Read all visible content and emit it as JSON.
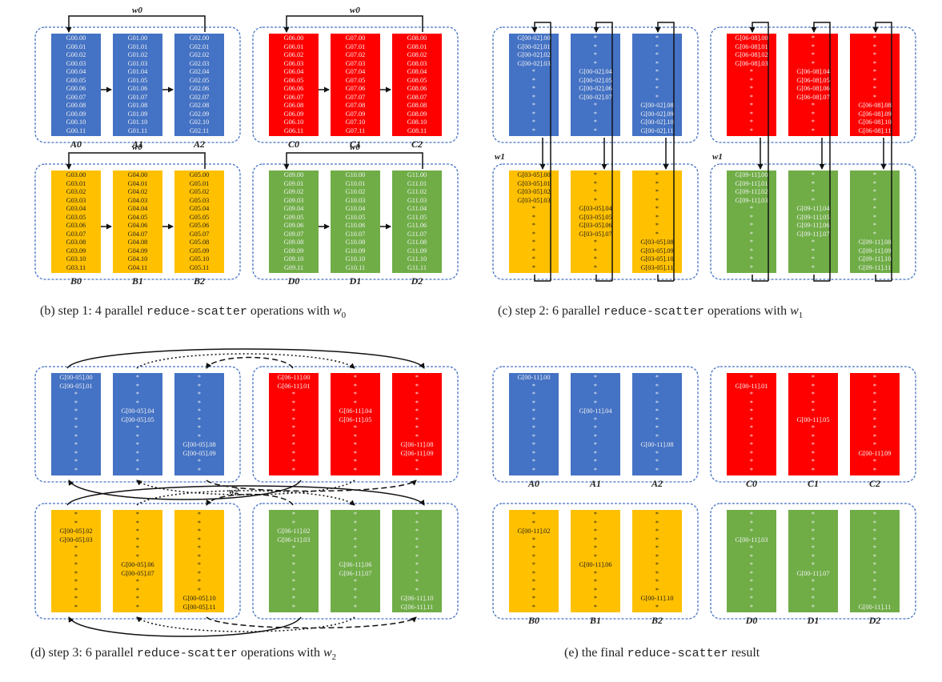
{
  "colors": {
    "A": "#4472c4",
    "B": "#ffc000",
    "C": "#ff0000",
    "D": "#70ad47"
  },
  "captions": {
    "b": {
      "prefix": "(b) step 1: 4 parallel ",
      "mono": "reduce-scatter",
      "middle": " operations with ",
      "var": "w",
      "sub": "0"
    },
    "c": {
      "prefix": "(c) step 2: 6 parallel ",
      "mono": "reduce-scatter",
      "middle": " operations with ",
      "var": "w",
      "sub": "1"
    },
    "d": {
      "prefix": "(d) step 3: 6 parallel ",
      "mono": "reduce-scatter",
      "middle": " operations with ",
      "var": "w",
      "sub": "2"
    },
    "e": {
      "prefix": "(e) the final ",
      "mono": "reduce-scatter",
      "middle": " result",
      "var": "",
      "sub": ""
    }
  },
  "weights": {
    "w0": "w0",
    "w1": "w1",
    "w2": "w2"
  },
  "node_labels": {
    "A": [
      "A0",
      "A1",
      "A2"
    ],
    "B": [
      "B0",
      "B1",
      "B2"
    ],
    "C": [
      "C0",
      "C1",
      "C2"
    ],
    "D": [
      "D0",
      "D1",
      "D2"
    ]
  },
  "step1": {
    "A": [
      [
        "G00.00",
        "G00.01",
        "G00.02",
        "G00.03",
        "G00.04",
        "G00.05",
        "G00.06",
        "G00.07",
        "G00.08",
        "G00.09",
        "G00.10",
        "G00.11"
      ],
      [
        "G01.00",
        "G01.01",
        "G01.02",
        "G01.03",
        "G01.04",
        "G01.05",
        "G01.06",
        "G01.07",
        "G01.08",
        "G01.09",
        "G01.10",
        "G01.11"
      ],
      [
        "G02.00",
        "G02.01",
        "G02.02",
        "G02.03",
        "G02.04",
        "G02.05",
        "G02.06",
        "G02.07",
        "G02.08",
        "G02.09",
        "G02.10",
        "G02.11"
      ]
    ],
    "B": [
      [
        "G03.00",
        "G03.01",
        "G03.02",
        "G03.03",
        "G03.04",
        "G03.05",
        "G03.06",
        "G03.07",
        "G03.08",
        "G03.09",
        "G03.10",
        "G03.11"
      ],
      [
        "G04.00",
        "G04.01",
        "G04.02",
        "G04.03",
        "G04.04",
        "G04.05",
        "G04.06",
        "G04.07",
        "G04.08",
        "G04.09",
        "G04.10",
        "G04.11"
      ],
      [
        "G05.00",
        "G05.01",
        "G05.02",
        "G05.03",
        "G05.04",
        "G05.05",
        "G05.06",
        "G05.07",
        "G05.08",
        "G05.09",
        "G05.10",
        "G05.11"
      ]
    ],
    "C": [
      [
        "G06.00",
        "G06.01",
        "G06.02",
        "G06.03",
        "G06.04",
        "G06.05",
        "G06.06",
        "G06.07",
        "G06.08",
        "G06.09",
        "G06.10",
        "G06.11"
      ],
      [
        "G07.00",
        "G07.01",
        "G07.02",
        "G07.03",
        "G07.04",
        "G07.05",
        "G07.06",
        "G07.07",
        "G07.08",
        "G07.09",
        "G07.10",
        "G07.11"
      ],
      [
        "G08.00",
        "G08.01",
        "G08.02",
        "G08.03",
        "G08.04",
        "G08.05",
        "G08.06",
        "G08.07",
        "G08.08",
        "G08.09",
        "G08.10",
        "G08.11"
      ]
    ],
    "D": [
      [
        "G09.00",
        "G09.01",
        "G09.02",
        "G09.03",
        "G09.04",
        "G09.05",
        "G09.06",
        "G09.07",
        "G09.08",
        "G09.09",
        "G09.10",
        "G09.11"
      ],
      [
        "G10.00",
        "G10.01",
        "G10.02",
        "G10.03",
        "G10.04",
        "G10.05",
        "G10.06",
        "G10.07",
        "G10.08",
        "G10.09",
        "G10.10",
        "G10.11"
      ],
      [
        "G11.00",
        "G11.01",
        "G11.02",
        "G11.03",
        "G11.04",
        "G11.05",
        "G11.06",
        "G11.07",
        "G11.08",
        "G11.09",
        "G11.10",
        "G11.11"
      ]
    ]
  },
  "step2": {
    "A": [
      [
        "G[00-02].00",
        "G[00-02].01",
        "G[00-02].02",
        "G[00-02].03",
        "*",
        "*",
        "*",
        "*",
        "*",
        "*",
        "*",
        "*"
      ],
      [
        "*",
        "*",
        "*",
        "*",
        "G[00-02].04",
        "G[00-02].05",
        "G[00-02].06",
        "G[00-02].07",
        "*",
        "*",
        "*",
        "*"
      ],
      [
        "*",
        "*",
        "*",
        "*",
        "*",
        "*",
        "*",
        "*",
        "G[00-02].08",
        "G[00-02].09",
        "G[00-02].10",
        "G[00-02].11"
      ]
    ],
    "B": [
      [
        "G[03-05].00",
        "G[03-05].01",
        "G[03-05].02",
        "G[03-05].03",
        "*",
        "*",
        "*",
        "*",
        "*",
        "*",
        "*",
        "*"
      ],
      [
        "*",
        "*",
        "*",
        "*",
        "G[03-05].04",
        "G[03-05].05",
        "G[03-05].06",
        "G[03-05].07",
        "*",
        "*",
        "*",
        "*"
      ],
      [
        "*",
        "*",
        "*",
        "*",
        "*",
        "*",
        "*",
        "*",
        "G[03-05].08",
        "G[03-05].09",
        "G[03-05].10",
        "G[03-05].11"
      ]
    ],
    "C": [
      [
        "G[06-08].00",
        "G[06-08].01",
        "G[06-08].02",
        "G[06-08].03",
        "*",
        "*",
        "*",
        "*",
        "*",
        "*",
        "*",
        "*"
      ],
      [
        "*",
        "*",
        "*",
        "*",
        "G[06-08].04",
        "G[06-08].05",
        "G[06-08].06",
        "G[06-08].07",
        "*",
        "*",
        "*",
        "*"
      ],
      [
        "*",
        "*",
        "*",
        "*",
        "*",
        "*",
        "*",
        "*",
        "G[06-08].08",
        "G[06-08].09",
        "G[06-08].10",
        "G[06-08].11"
      ]
    ],
    "D": [
      [
        "G[09-11].00",
        "G[09-11].01",
        "G[09-11].02",
        "G[09-11].03",
        "*",
        "*",
        "*",
        "*",
        "*",
        "*",
        "*",
        "*"
      ],
      [
        "*",
        "*",
        "*",
        "*",
        "G[09-11].04",
        "G[09-11].05",
        "G[09-11].06",
        "G[09-11].07",
        "*",
        "*",
        "*",
        "*"
      ],
      [
        "*",
        "*",
        "*",
        "*",
        "*",
        "*",
        "*",
        "*",
        "G[09-11].08",
        "G[09-11].09",
        "G[09-11].10",
        "G[09-11].11"
      ]
    ]
  },
  "step3": {
    "A": [
      [
        "G[00-05].00",
        "G[00-05].01",
        "*",
        "*",
        "*",
        "*",
        "*",
        "*",
        "*",
        "*",
        "*",
        "*"
      ],
      [
        "*",
        "*",
        "*",
        "*",
        "G[00-05].04",
        "G[00-05].05",
        "*",
        "*",
        "*",
        "*",
        "*",
        "*"
      ],
      [
        "*",
        "*",
        "*",
        "*",
        "*",
        "*",
        "*",
        "*",
        "G[00-05].08",
        "G[00-05].09",
        "*",
        "*"
      ]
    ],
    "B": [
      [
        "*",
        "*",
        "G[00-05].02",
        "G[00-05].03",
        "*",
        "*",
        "*",
        "*",
        "*",
        "*",
        "*",
        "*"
      ],
      [
        "*",
        "*",
        "*",
        "*",
        "*",
        "*",
        "G[00-05].06",
        "G[00-05].07",
        "*",
        "*",
        "*",
        "*"
      ],
      [
        "*",
        "*",
        "*",
        "*",
        "*",
        "*",
        "*",
        "*",
        "*",
        "*",
        "G[00-05].10",
        "G[00-05].11"
      ]
    ],
    "C": [
      [
        "G[06-11].00",
        "G[06-11].01",
        "*",
        "*",
        "*",
        "*",
        "*",
        "*",
        "*",
        "*",
        "*",
        "*"
      ],
      [
        "*",
        "*",
        "*",
        "*",
        "G[06-11].04",
        "G[06-11].05",
        "*",
        "*",
        "*",
        "*",
        "*",
        "*"
      ],
      [
        "*",
        "*",
        "*",
        "*",
        "*",
        "*",
        "*",
        "*",
        "G[06-11].08",
        "G[06-11].09",
        "*",
        "*"
      ]
    ],
    "D": [
      [
        "*",
        "*",
        "G[06-11].02",
        "G[06-11].03",
        "*",
        "*",
        "*",
        "*",
        "*",
        "*",
        "*",
        "*"
      ],
      [
        "*",
        "*",
        "*",
        "*",
        "*",
        "*",
        "G[06-11].06",
        "G[06-11].07",
        "*",
        "*",
        "*",
        "*"
      ],
      [
        "*",
        "*",
        "*",
        "*",
        "*",
        "*",
        "*",
        "*",
        "*",
        "*",
        "G[06-11].10",
        "G[06-11].11"
      ]
    ]
  },
  "final": {
    "A": [
      [
        "G[00-11].00",
        "*",
        "*",
        "*",
        "*",
        "*",
        "*",
        "*",
        "*",
        "*",
        "*",
        "*"
      ],
      [
        "*",
        "*",
        "*",
        "*",
        "G[00-11].04",
        "*",
        "*",
        "*",
        "*",
        "*",
        "*",
        "*"
      ],
      [
        "*",
        "*",
        "*",
        "*",
        "*",
        "*",
        "*",
        "*",
        "G[00-11].08",
        "*",
        "*",
        "*"
      ]
    ],
    "B": [
      [
        "*",
        "*",
        "G[00-11].02",
        "*",
        "*",
        "*",
        "*",
        "*",
        "*",
        "*",
        "*",
        "*"
      ],
      [
        "*",
        "*",
        "*",
        "*",
        "*",
        "*",
        "G[00-11].06",
        "*",
        "*",
        "*",
        "*",
        "*"
      ],
      [
        "*",
        "*",
        "*",
        "*",
        "*",
        "*",
        "*",
        "*",
        "*",
        "*",
        "G[00-11].10",
        "*"
      ]
    ],
    "C": [
      [
        "*",
        "G[00-11].01",
        "*",
        "*",
        "*",
        "*",
        "*",
        "*",
        "*",
        "*",
        "*",
        "*"
      ],
      [
        "*",
        "*",
        "*",
        "*",
        "*",
        "G[00-11].05",
        "*",
        "*",
        "*",
        "*",
        "*",
        "*"
      ],
      [
        "*",
        "*",
        "*",
        "*",
        "*",
        "*",
        "*",
        "*",
        "*",
        "G[00-11].09",
        "*",
        "*"
      ]
    ],
    "D": [
      [
        "*",
        "*",
        "*",
        "G[00-11].03",
        "*",
        "*",
        "*",
        "*",
        "*",
        "*",
        "*",
        "*"
      ],
      [
        "*",
        "*",
        "*",
        "*",
        "*",
        "*",
        "*",
        "G[00-11].07",
        "*",
        "*",
        "*",
        "*"
      ],
      [
        "*",
        "*",
        "*",
        "*",
        "*",
        "*",
        "*",
        "*",
        "*",
        "*",
        "*",
        "G[00-11].11"
      ]
    ]
  }
}
